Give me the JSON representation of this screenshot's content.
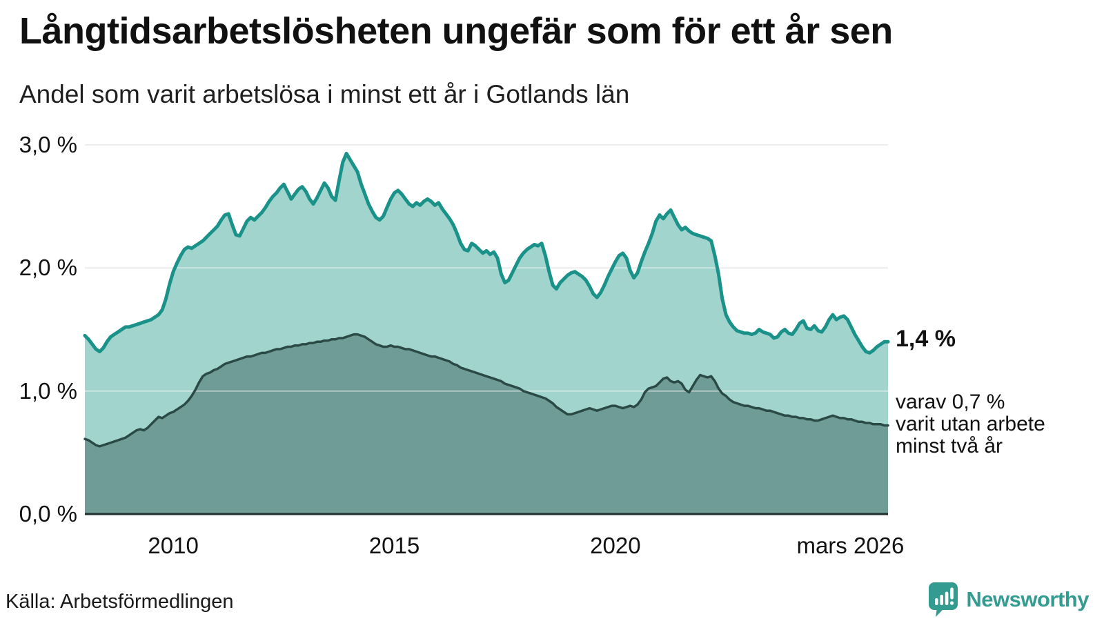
{
  "title": "Långtidsarbetslösheten ungefär som för ett år sen",
  "subtitle": "Andel som varit arbetslösa i minst ett år i Gotlands län",
  "annotations": {
    "latest_value": "1,4 %",
    "secondary_lines": [
      "varav 0,7 %",
      "varit utan arbete",
      "minst två år"
    ]
  },
  "source": "Källa: Arbetsförmedlingen",
  "branding": {
    "name": "Newsworthy",
    "logo_icon": "bar-chart-speech-bubble-icon",
    "color": "#339b90"
  },
  "colors": {
    "line1": "#1a9289",
    "fill1": "#a1d4cd",
    "line2": "#2b4a46",
    "fill2": "#6f9c96",
    "grid": "#dedede",
    "grid_overlay": "rgba(255,255,255,0.45)",
    "axis": "#1e2f2d",
    "text": "#1a1a1a"
  },
  "chart_data": {
    "type": "area",
    "title": "Långtidsarbetslösheten ungefär som för ett år sen",
    "subtitle": "Andel som varit arbetslösa i minst ett år i Gotlands län",
    "unit": "%",
    "x_start": 2008.0,
    "x_end": 2026.1667,
    "frequency": "monthly",
    "ylim": [
      0,
      3.0
    ],
    "grid": "horizontal",
    "y_ticks": [
      {
        "label": "0,0 %",
        "value": 0.0
      },
      {
        "label": "1,0 %",
        "value": 1.0
      },
      {
        "label": "2,0 %",
        "value": 2.0
      },
      {
        "label": "3,0 %",
        "value": 3.0
      }
    ],
    "x_ticks": [
      {
        "label": "2010",
        "t": 2010
      },
      {
        "label": "2015",
        "t": 2015
      },
      {
        "label": "2020",
        "t": 2020
      },
      {
        "label": "mars 2026",
        "t": 2026.1667,
        "last": true
      }
    ],
    "series": [
      {
        "name": "Andel som varit arbetslösa i minst ett år",
        "latest_label": "1,4 %",
        "values": [
          1.45,
          1.42,
          1.38,
          1.34,
          1.32,
          1.35,
          1.4,
          1.44,
          1.46,
          1.48,
          1.5,
          1.52,
          1.52,
          1.53,
          1.54,
          1.55,
          1.56,
          1.57,
          1.58,
          1.6,
          1.62,
          1.66,
          1.75,
          1.87,
          1.97,
          2.04,
          2.1,
          2.15,
          2.17,
          2.16,
          2.18,
          2.2,
          2.22,
          2.25,
          2.28,
          2.31,
          2.34,
          2.39,
          2.43,
          2.44,
          2.35,
          2.27,
          2.26,
          2.32,
          2.38,
          2.41,
          2.39,
          2.42,
          2.45,
          2.49,
          2.54,
          2.58,
          2.61,
          2.65,
          2.68,
          2.62,
          2.56,
          2.6,
          2.64,
          2.66,
          2.62,
          2.56,
          2.52,
          2.57,
          2.63,
          2.69,
          2.65,
          2.58,
          2.55,
          2.71,
          2.86,
          2.93,
          2.88,
          2.83,
          2.78,
          2.68,
          2.6,
          2.52,
          2.46,
          2.41,
          2.39,
          2.42,
          2.49,
          2.56,
          2.61,
          2.63,
          2.6,
          2.56,
          2.52,
          2.5,
          2.53,
          2.51,
          2.54,
          2.56,
          2.54,
          2.51,
          2.53,
          2.48,
          2.44,
          2.4,
          2.35,
          2.28,
          2.2,
          2.15,
          2.14,
          2.2,
          2.18,
          2.15,
          2.12,
          2.14,
          2.11,
          2.13,
          2.08,
          1.95,
          1.88,
          1.9,
          1.96,
          2.02,
          2.08,
          2.12,
          2.15,
          2.17,
          2.19,
          2.18,
          2.2,
          2.1,
          1.97,
          1.86,
          1.83,
          1.88,
          1.91,
          1.94,
          1.96,
          1.97,
          1.95,
          1.93,
          1.9,
          1.85,
          1.79,
          1.76,
          1.8,
          1.86,
          1.93,
          1.99,
          2.05,
          2.1,
          2.12,
          2.08,
          1.98,
          1.92,
          1.96,
          2.05,
          2.13,
          2.2,
          2.28,
          2.38,
          2.43,
          2.4,
          2.44,
          2.47,
          2.41,
          2.35,
          2.31,
          2.33,
          2.3,
          2.28,
          2.27,
          2.26,
          2.25,
          2.24,
          2.22,
          2.1,
          1.95,
          1.75,
          1.62,
          1.56,
          1.52,
          1.49,
          1.48,
          1.47,
          1.47,
          1.46,
          1.47,
          1.5,
          1.48,
          1.47,
          1.46,
          1.43,
          1.44,
          1.48,
          1.5,
          1.47,
          1.46,
          1.5,
          1.55,
          1.57,
          1.51,
          1.5,
          1.53,
          1.49,
          1.48,
          1.52,
          1.58,
          1.62,
          1.58,
          1.6,
          1.61,
          1.58,
          1.52,
          1.46,
          1.41,
          1.36,
          1.32,
          1.31,
          1.33,
          1.36,
          1.38,
          1.4,
          1.4
        ]
      },
      {
        "name": "varav arbetslösa minst två år",
        "latest_label": "0,7 %",
        "values": [
          0.61,
          0.6,
          0.58,
          0.56,
          0.55,
          0.56,
          0.57,
          0.58,
          0.59,
          0.6,
          0.61,
          0.62,
          0.64,
          0.66,
          0.68,
          0.69,
          0.68,
          0.7,
          0.73,
          0.76,
          0.79,
          0.78,
          0.8,
          0.82,
          0.83,
          0.85,
          0.87,
          0.89,
          0.92,
          0.96,
          1.01,
          1.07,
          1.12,
          1.14,
          1.15,
          1.17,
          1.18,
          1.2,
          1.22,
          1.23,
          1.24,
          1.25,
          1.26,
          1.27,
          1.28,
          1.28,
          1.29,
          1.3,
          1.31,
          1.31,
          1.32,
          1.33,
          1.34,
          1.34,
          1.35,
          1.36,
          1.36,
          1.37,
          1.37,
          1.38,
          1.38,
          1.39,
          1.39,
          1.4,
          1.4,
          1.41,
          1.41,
          1.42,
          1.42,
          1.43,
          1.43,
          1.44,
          1.45,
          1.46,
          1.46,
          1.45,
          1.44,
          1.42,
          1.4,
          1.38,
          1.37,
          1.36,
          1.36,
          1.37,
          1.36,
          1.36,
          1.35,
          1.34,
          1.34,
          1.33,
          1.32,
          1.31,
          1.3,
          1.29,
          1.28,
          1.28,
          1.27,
          1.26,
          1.25,
          1.24,
          1.22,
          1.21,
          1.19,
          1.18,
          1.17,
          1.16,
          1.15,
          1.14,
          1.13,
          1.12,
          1.11,
          1.1,
          1.09,
          1.08,
          1.06,
          1.05,
          1.04,
          1.03,
          1.02,
          1.0,
          0.99,
          0.98,
          0.97,
          0.96,
          0.95,
          0.94,
          0.92,
          0.9,
          0.87,
          0.85,
          0.83,
          0.81,
          0.81,
          0.82,
          0.83,
          0.84,
          0.85,
          0.86,
          0.85,
          0.84,
          0.85,
          0.86,
          0.87,
          0.88,
          0.88,
          0.87,
          0.86,
          0.87,
          0.88,
          0.87,
          0.89,
          0.93,
          0.99,
          1.02,
          1.03,
          1.04,
          1.07,
          1.1,
          1.11,
          1.08,
          1.07,
          1.08,
          1.06,
          1.01,
          0.99,
          1.04,
          1.09,
          1.13,
          1.12,
          1.11,
          1.12,
          1.08,
          1.02,
          0.98,
          0.96,
          0.93,
          0.91,
          0.9,
          0.89,
          0.88,
          0.88,
          0.87,
          0.86,
          0.86,
          0.85,
          0.84,
          0.84,
          0.83,
          0.82,
          0.81,
          0.8,
          0.8,
          0.79,
          0.79,
          0.78,
          0.78,
          0.77,
          0.77,
          0.76,
          0.76,
          0.77,
          0.78,
          0.79,
          0.8,
          0.79,
          0.78,
          0.78,
          0.77,
          0.77,
          0.76,
          0.75,
          0.75,
          0.74,
          0.74,
          0.73,
          0.73,
          0.73,
          0.72,
          0.72
        ]
      }
    ]
  }
}
